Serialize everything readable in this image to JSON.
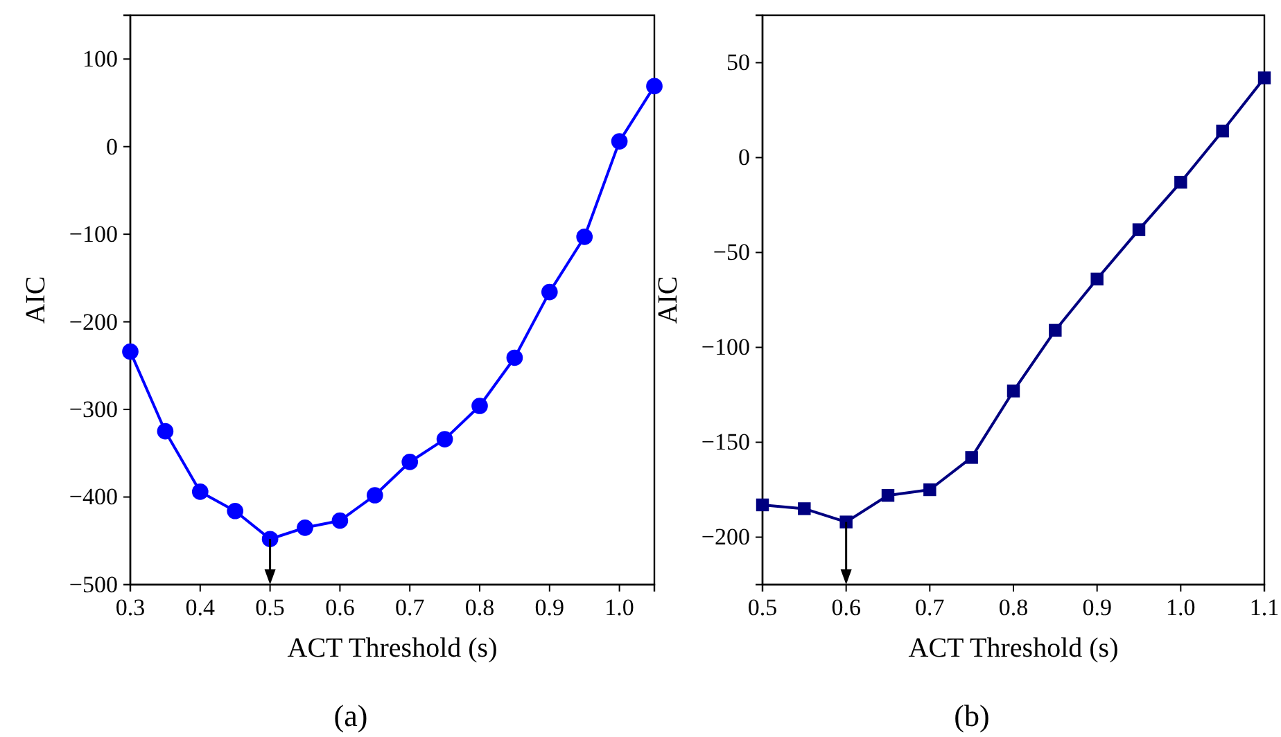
{
  "chart_data": [
    {
      "type": "line",
      "xlabel": "ACT Threshold (s)",
      "ylabel": "AIC",
      "annotations": [
        "(a)"
      ],
      "marker": "circle",
      "line_style": "solid",
      "grid": false,
      "x": [
        0.3,
        0.35,
        0.4,
        0.45,
        0.5,
        0.55,
        0.6,
        0.65,
        0.7,
        0.75,
        0.8,
        0.85,
        0.9,
        0.95,
        1.0,
        1.05
      ],
      "series": [
        {
          "color": "#0000ff",
          "values": [
            -234,
            -325,
            -394,
            -416,
            -448,
            -435,
            -427,
            -398,
            -360,
            -334,
            -296,
            -241,
            -166,
            -103,
            6,
            69
          ]
        }
      ],
      "xlim": [
        0.3,
        1.05
      ],
      "xticks": [
        0.3,
        0.4,
        0.5,
        0.6,
        0.7,
        0.8,
        0.9,
        {
          "value": 1.0,
          "label": "1.0"
        }
      ],
      "ylim": [
        -500,
        150
      ],
      "yticks": [
        -500,
        -400,
        -300,
        -200,
        -100,
        0,
        100
      ]
    },
    {
      "type": "line",
      "xlabel": "ACT Threshold (s)",
      "ylabel": "AIC",
      "annotations": [
        "(b)"
      ],
      "marker": "square",
      "line_style": "solid",
      "grid": false,
      "x": [
        0.5,
        0.55,
        0.6,
        0.65,
        0.7,
        0.75,
        0.8,
        0.85,
        0.9,
        0.95,
        1.0,
        1.05,
        1.1
      ],
      "series": [
        {
          "color": "#000080",
          "values": [
            -183,
            -185,
            -192,
            -178,
            -175,
            -158,
            -123,
            -91,
            -64,
            -38,
            -13,
            14,
            42
          ]
        }
      ],
      "xlim": [
        0.5,
        1.1
      ],
      "xticks": [
        0.5,
        0.6,
        0.7,
        0.8,
        0.9,
        {
          "value": 1.0,
          "label": "1.0"
        },
        1.1
      ],
      "ylim": [
        -225,
        75
      ],
      "yticks": [
        -200,
        -150,
        -100,
        -50,
        0,
        50
      ]
    }
  ]
}
